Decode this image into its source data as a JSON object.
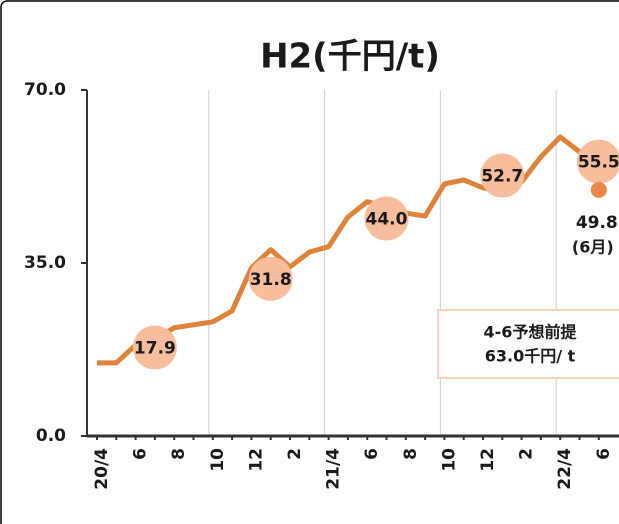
{
  "chart_data": {
    "type": "line",
    "title": "H2(千円/t)",
    "categories": [
      "20/4",
      null,
      "6",
      null,
      "8",
      null,
      "10",
      null,
      "12",
      null,
      "2",
      null,
      "21/4",
      null,
      "6",
      null,
      "8",
      null,
      "10",
      null,
      "12",
      null,
      "2",
      null,
      "22/4",
      null,
      "6"
    ],
    "series": [
      {
        "color": "#e0833a",
        "values": [
          14.8,
          14.8,
          18.4,
          19.6,
          21.9,
          22.5,
          23.1,
          25.3,
          34.0,
          37.7,
          34.2,
          37.2,
          38.3,
          44.3,
          47.4,
          46.4,
          45.1,
          44.5,
          51.0,
          51.8,
          50.2,
          49.4,
          51.4,
          56.5,
          60.5,
          57.5,
          55.5
        ]
      },
      {
        "type": "bubble",
        "color": "#f8bd9d",
        "values": [
          null,
          null,
          null,
          17.9,
          null,
          null,
          null,
          null,
          null,
          31.8,
          null,
          null,
          null,
          null,
          null,
          44.0,
          null,
          null,
          null,
          null,
          null,
          52.7,
          null,
          null,
          null,
          null,
          55.5
        ],
        "value_labels": [
          null,
          null,
          null,
          "17.9",
          null,
          null,
          null,
          null,
          null,
          "31.8",
          null,
          null,
          null,
          null,
          null,
          "44.0",
          null,
          null,
          null,
          null,
          null,
          "52.7",
          null,
          null,
          null,
          null,
          "55.5"
        ]
      },
      {
        "type": "dot",
        "color": "#e8894a",
        "values": [
          null,
          null,
          null,
          null,
          null,
          null,
          null,
          null,
          null,
          null,
          null,
          null,
          null,
          null,
          null,
          null,
          null,
          null,
          null,
          null,
          null,
          null,
          null,
          null,
          null,
          null,
          49.8
        ],
        "value_labels": [
          null,
          null,
          null,
          null,
          null,
          null,
          null,
          null,
          null,
          null,
          null,
          null,
          null,
          null,
          null,
          null,
          null,
          null,
          null,
          null,
          null,
          null,
          null,
          null,
          null,
          null,
          "49.8"
        ],
        "note": "(6月)"
      }
    ],
    "box": [
      "4-6予想前提",
      "63.0千円/ t"
    ],
    "ylim": [
      0,
      70
    ],
    "yticks": [
      {
        "value": 0,
        "label": "0.0"
      },
      {
        "value": 35,
        "label": "35.0"
      },
      {
        "value": 70,
        "label": "70.0"
      }
    ]
  }
}
